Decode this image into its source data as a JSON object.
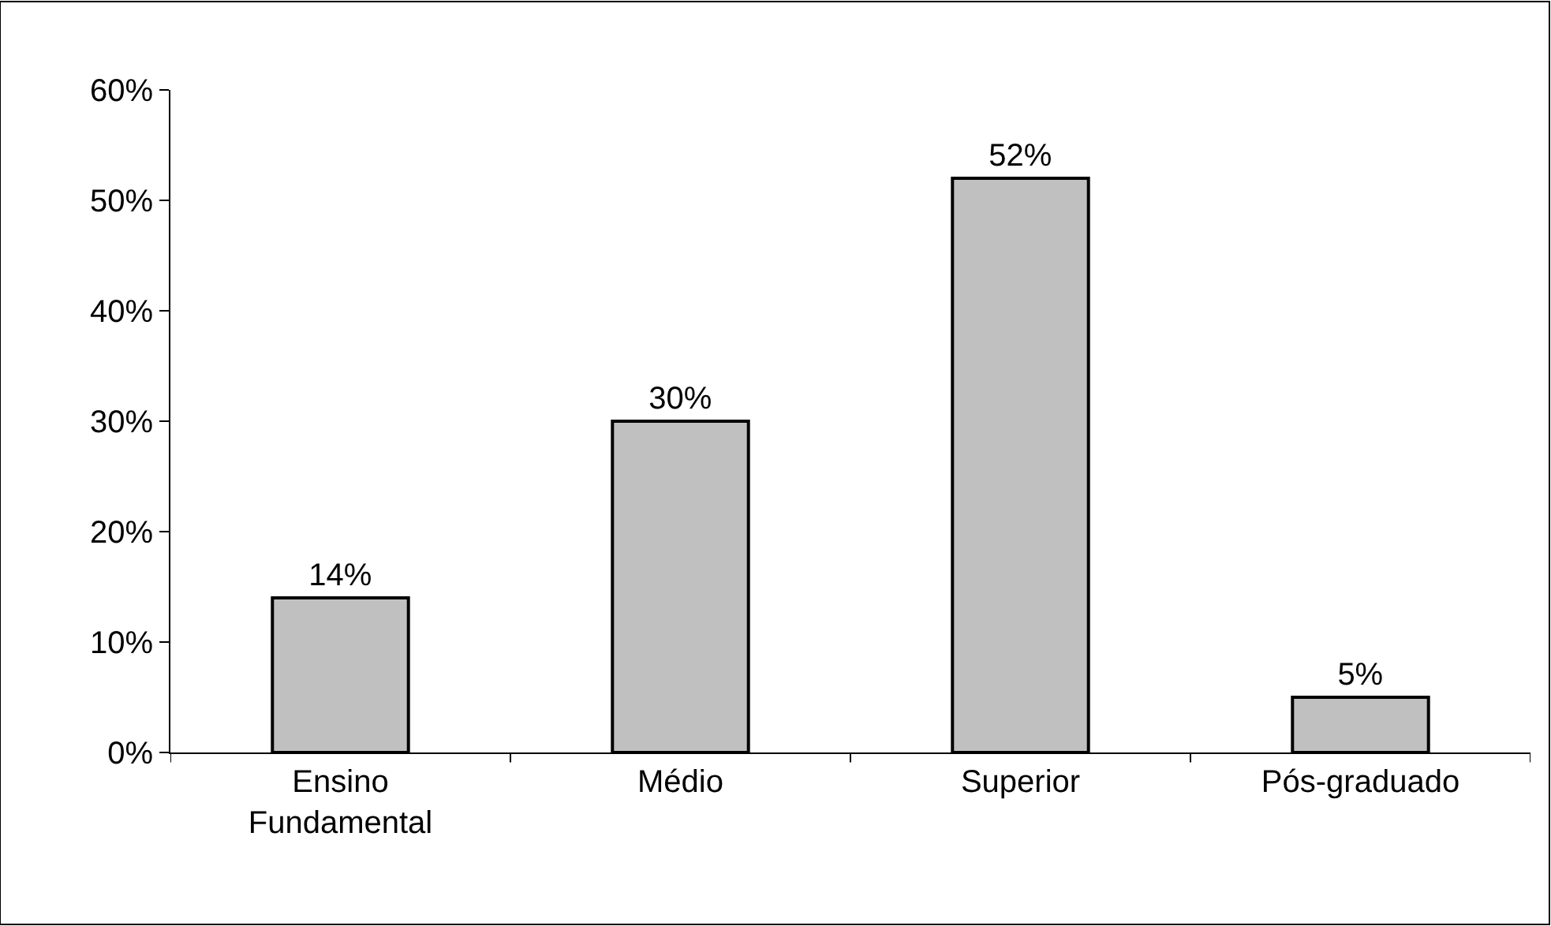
{
  "chart_data": {
    "type": "bar",
    "categories": [
      "Ensino\nFundamental",
      "Médio",
      "Superior",
      "Pós-graduado"
    ],
    "values": [
      14,
      30,
      52,
      5
    ],
    "value_labels": [
      "14%",
      "30%",
      "52%",
      "5%"
    ],
    "color": "#c0c0c0",
    "ylim": [
      0,
      60
    ],
    "yticks": [
      {
        "value": 0,
        "label": "0%"
      },
      {
        "value": 10,
        "label": "10%"
      },
      {
        "value": 20,
        "label": "20%"
      },
      {
        "value": 30,
        "label": "30%"
      },
      {
        "value": 40,
        "label": "40%"
      },
      {
        "value": 50,
        "label": "50%"
      },
      {
        "value": 60,
        "label": "60%"
      }
    ],
    "grid": false
  }
}
